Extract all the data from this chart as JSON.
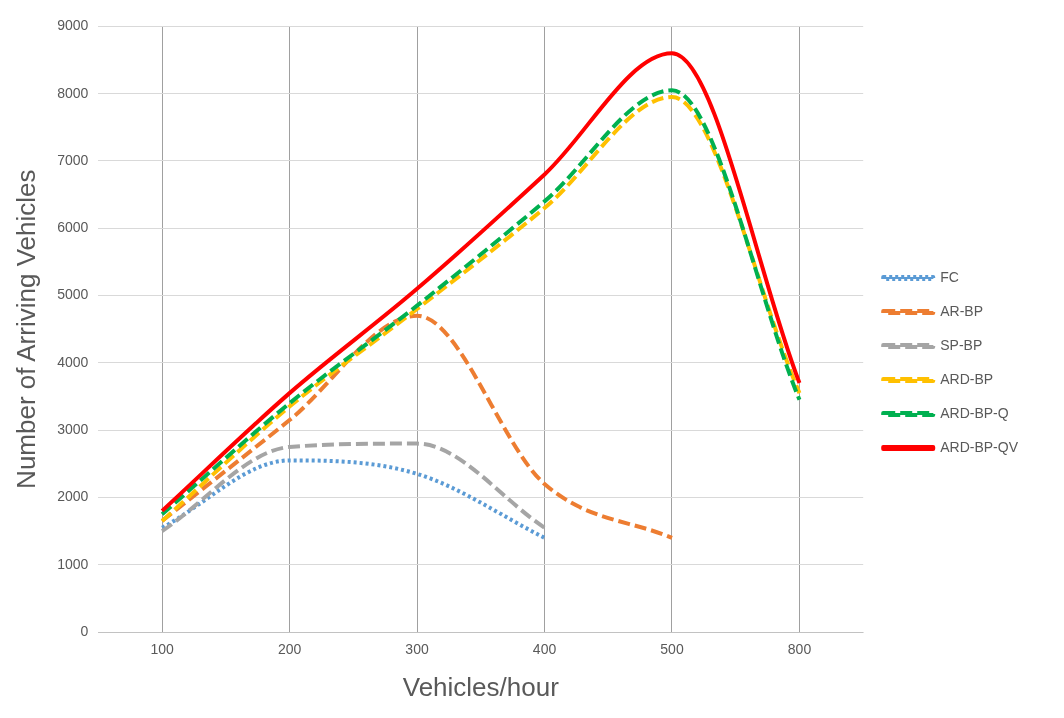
{
  "chart_data": {
    "type": "line",
    "xlabel": "Vehicles/hour",
    "ylabel": "Number of Arriving Vehicles",
    "categories": [
      "100",
      "200",
      "300",
      "400",
      "500",
      "800"
    ],
    "ylim": [
      0,
      9000
    ],
    "yticks": [
      0,
      1000,
      2000,
      3000,
      4000,
      5000,
      6000,
      7000,
      8000,
      9000
    ],
    "grid": true,
    "legend": "right",
    "marker": "none",
    "series": [
      {
        "name": "FC",
        "color": "#5b9bd5",
        "line_style": "dotted",
        "values": [
          1550,
          2550,
          2350,
          1400,
          null,
          null
        ]
      },
      {
        "name": "AR-BP",
        "color": "#ed7d31",
        "line_style": "dashed",
        "values": [
          1650,
          3150,
          4700,
          2200,
          1400,
          null
        ]
      },
      {
        "name": "SP-BP",
        "color": "#a5a5a5",
        "line_style": "dashed",
        "values": [
          1500,
          2750,
          2800,
          1550,
          null,
          null
        ]
      },
      {
        "name": "ARD-BP",
        "color": "#ffc000",
        "line_style": "dashed",
        "values": [
          1650,
          3350,
          4800,
          6300,
          7950,
          3550
        ]
      },
      {
        "name": "ARD-BP-Q",
        "color": "#00b050",
        "line_style": "dashed",
        "values": [
          1750,
          3400,
          4850,
          6400,
          8050,
          3450
        ]
      },
      {
        "name": "ARD-BP-QV",
        "color": "#ff0000",
        "line_style": "solid",
        "values": [
          1800,
          3550,
          5100,
          6800,
          8600,
          3700
        ]
      }
    ]
  }
}
